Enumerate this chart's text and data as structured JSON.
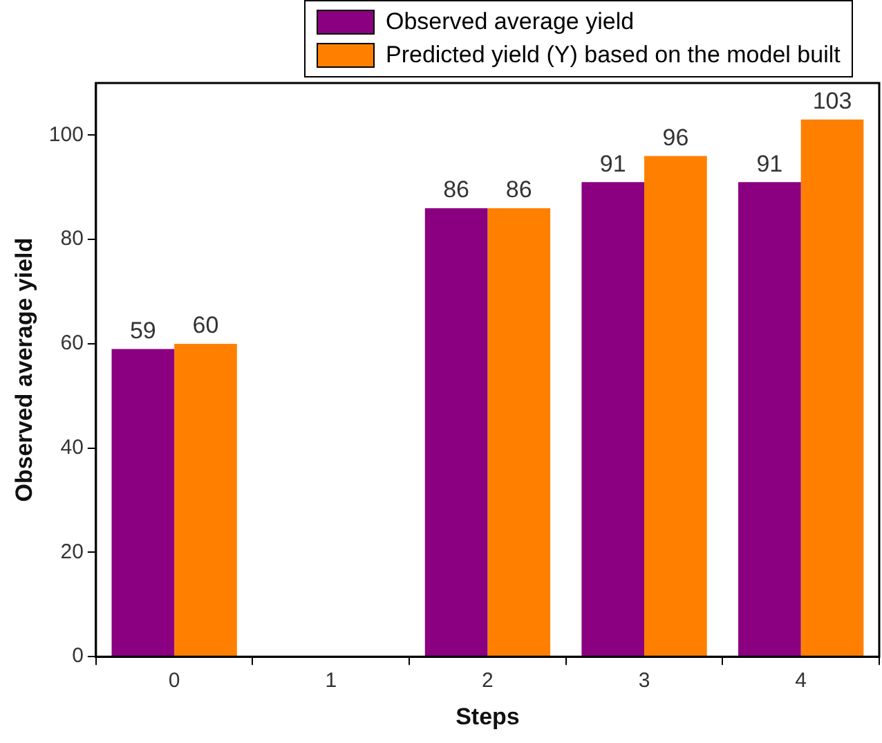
{
  "chart_data": {
    "type": "bar",
    "xlabel": "Steps",
    "ylabel": "Observed average yield",
    "categories": [
      "0",
      "1",
      "2",
      "3",
      "4"
    ],
    "series": [
      {
        "name": "Observed average yield",
        "color": "#8b0080",
        "values": [
          59,
          null,
          86,
          91,
          91
        ]
      },
      {
        "name": "Predicted yield (Y) based on the model built",
        "color": "#ff8000",
        "values": [
          60,
          null,
          86,
          96,
          103
        ]
      }
    ],
    "ylim": [
      0,
      110
    ],
    "yticks": [
      0,
      20,
      40,
      60,
      80,
      100
    ],
    "grid": false,
    "legend": "top",
    "data_labels": true
  }
}
